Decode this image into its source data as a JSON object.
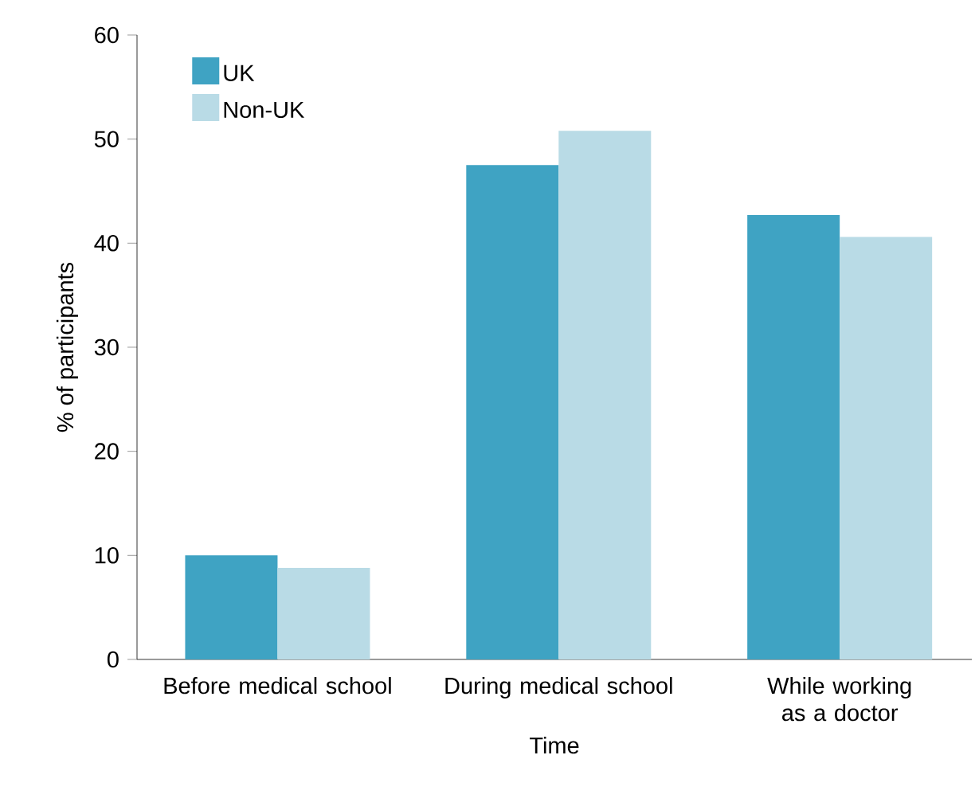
{
  "chart_data": {
    "type": "bar",
    "xlabel": "Time",
    "ylabel": "% of participants",
    "categories": [
      "Before medical school",
      "During medical school",
      "While working as a doctor"
    ],
    "series": [
      {
        "name": "UK",
        "color": "#3fa3c3",
        "values": [
          10.0,
          47.5,
          42.7
        ]
      },
      {
        "name": "Non-UK",
        "color": "#b9dbe6",
        "values": [
          8.8,
          50.8,
          40.6
        ]
      }
    ],
    "ylim": [
      0,
      60
    ],
    "yticks": [
      0,
      10,
      20,
      30,
      40,
      50,
      60
    ],
    "legend": "top left"
  }
}
